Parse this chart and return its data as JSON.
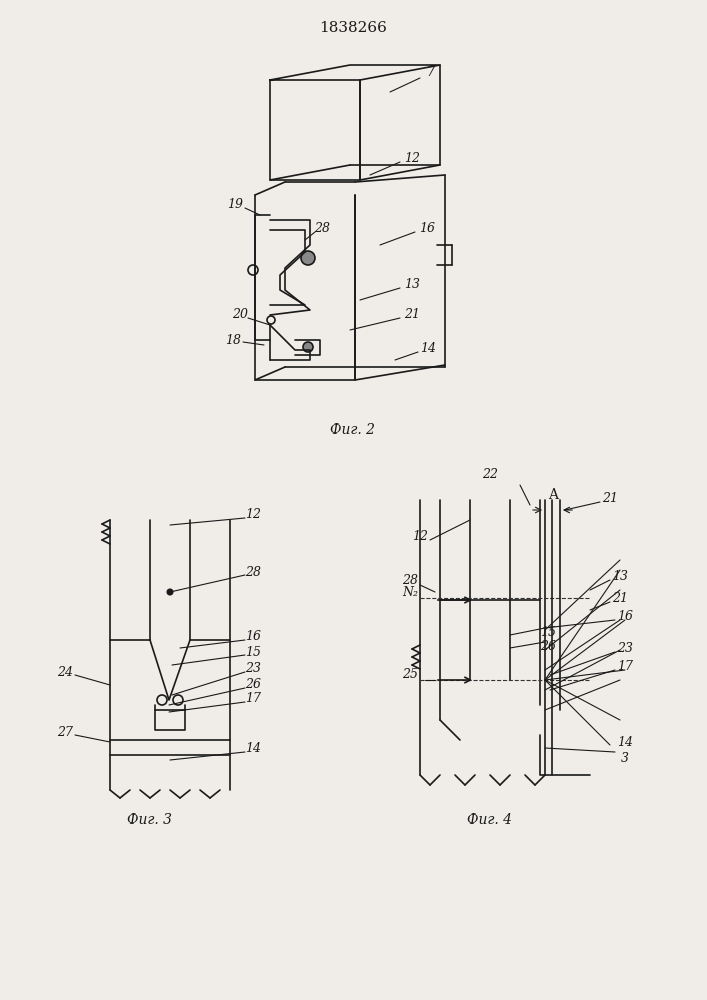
{
  "title": "1838266",
  "fig2_label": "Фиг. 2",
  "fig3_label": "Фиг. 3",
  "fig4_label": "Фиг. 4",
  "bg_color": "#f0ede8",
  "line_color": "#1a1a1a",
  "font_size_title": 11,
  "font_size_label": 10,
  "font_size_num": 9
}
